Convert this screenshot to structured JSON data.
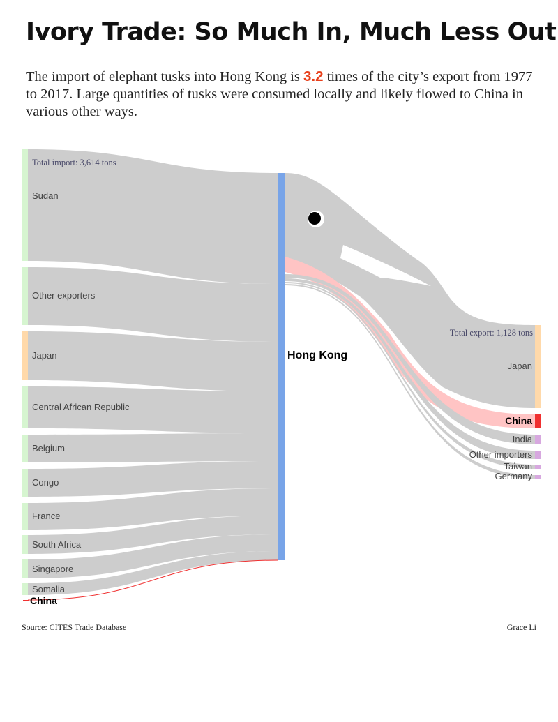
{
  "title": "Ivory Trade: So Much In, Much Less Out",
  "subtitle": {
    "before": "The import of elephant tusks into Hong Kong is ",
    "highlight": "3.2",
    "after": " times of the city’s export from 1977 to 2017. Large quantities of tusks were consumed locally and likely flowed to China in various other ways."
  },
  "colors": {
    "flow": "#cdcdcd",
    "hub": "#78a4e8",
    "source_node": "#d6f5d0",
    "japan_node": "#ffd9aa",
    "china": "#f03030",
    "china_flow": "#ffc4c4",
    "minor_importer": "#d7a8df",
    "highlight": "#e8401c"
  },
  "chart_data": {
    "type": "sankey",
    "hub": "Hong Kong",
    "import_total_label": "Total import: 3,614 tons",
    "export_total_label": "Total export: 1,128 tons",
    "ratio": 3.2,
    "sources": [
      {
        "name": "Sudan",
        "node": "source_node"
      },
      {
        "name": "Other exporters",
        "node": "source_node"
      },
      {
        "name": "Japan",
        "node": "japan_node"
      },
      {
        "name": "Central African Republic",
        "node": "source_node"
      },
      {
        "name": "Belgium",
        "node": "source_node"
      },
      {
        "name": "Congo",
        "node": "source_node"
      },
      {
        "name": "France",
        "node": "source_node"
      },
      {
        "name": "South Africa",
        "node": "source_node"
      },
      {
        "name": "Singapore",
        "node": "source_node"
      },
      {
        "name": "Somalia",
        "node": "source_node"
      },
      {
        "name": "China",
        "node": "china",
        "bold": true
      }
    ],
    "destinations": [
      {
        "name": "Japan",
        "node": "japan_node"
      },
      {
        "name": "China",
        "node": "china",
        "bold": true
      },
      {
        "name": "India",
        "node": "minor_importer"
      },
      {
        "name": "Other importers",
        "node": "minor_importer"
      },
      {
        "name": "Taiwan",
        "node": "minor_importer"
      },
      {
        "name": "Germany",
        "node": "minor_importer"
      }
    ]
  },
  "footer": {
    "source": "Source: CITES Trade Database",
    "credit": "Grace Li"
  }
}
